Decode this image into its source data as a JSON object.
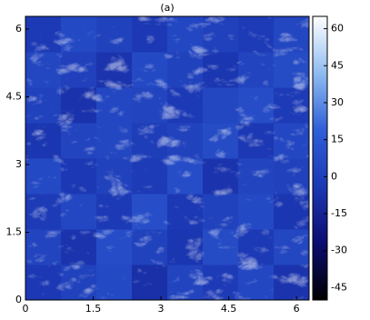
{
  "chart_data": {
    "type": "heatmap",
    "title": "(a)",
    "xlim": [
      0,
      6.28
    ],
    "ylim": [
      0,
      6.28
    ],
    "xticks": [
      0,
      1.5,
      3,
      4.5,
      6
    ],
    "yticks": [
      0,
      1.5,
      3,
      4.5,
      6
    ],
    "clim": [
      -50,
      65
    ],
    "cticks": [
      -45,
      -30,
      -15,
      0,
      15,
      30,
      45,
      60
    ],
    "colormap": [
      "#000000",
      "#0b0c70",
      "#1c38b4",
      "#2f5fd8",
      "#8fbcf0",
      "#ffffff"
    ],
    "z": [
      [
        -4,
        2,
        6,
        -8,
        3,
        -2,
        5,
        -6
      ],
      [
        3,
        -6,
        8,
        2,
        -5,
        7,
        -3,
        4
      ],
      [
        -2,
        5,
        -3,
        9,
        -4,
        2,
        6,
        -5
      ],
      [
        6,
        -4,
        2,
        -2,
        8,
        -6,
        3,
        1
      ],
      [
        -5,
        3,
        4,
        -1,
        2,
        7,
        -4,
        5
      ],
      [
        2,
        -7,
        5,
        3,
        -3,
        4,
        8,
        -2
      ],
      [
        4,
        1,
        -6,
        6,
        2,
        -5,
        3,
        7
      ],
      [
        -3,
        6,
        2,
        -4,
        5,
        1,
        -2,
        4
      ]
    ]
  }
}
